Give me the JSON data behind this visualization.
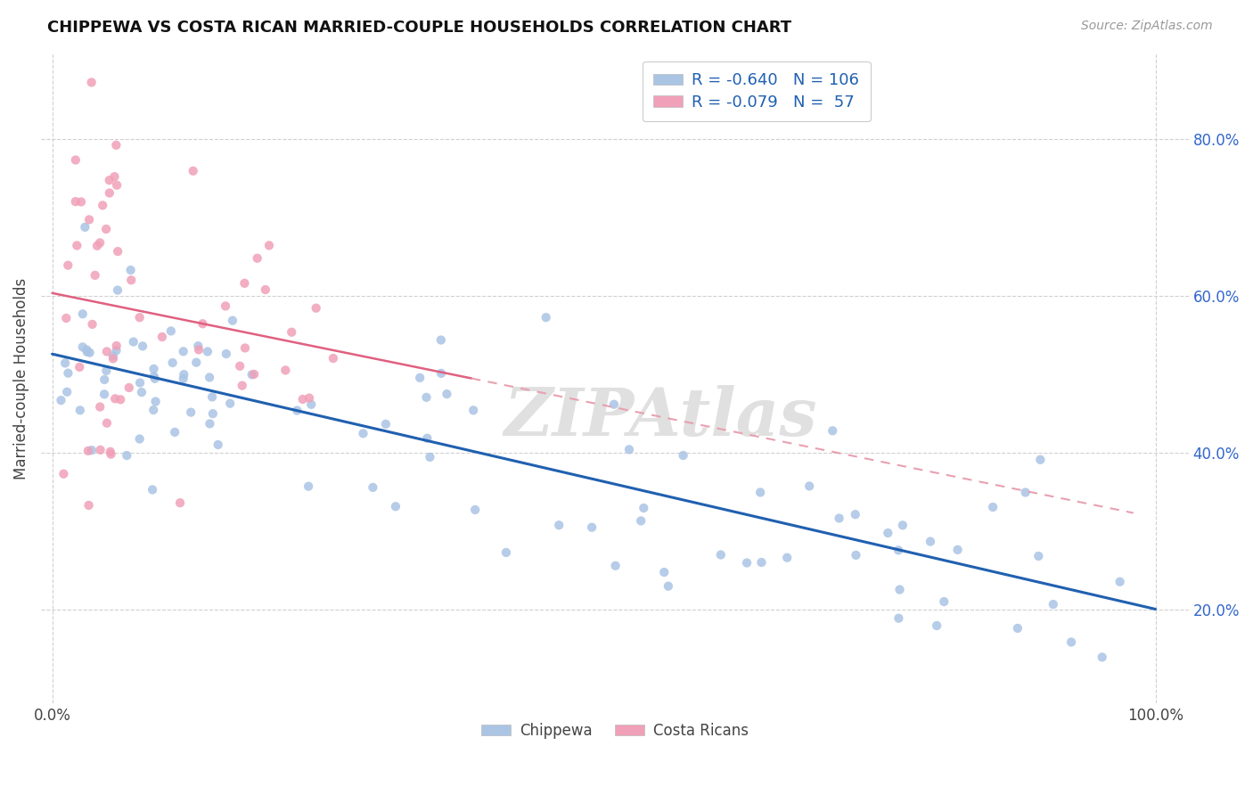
{
  "title": "CHIPPEWA VS COSTA RICAN MARRIED-COUPLE HOUSEHOLDS CORRELATION CHART",
  "source": "Source: ZipAtlas.com",
  "ylabel": "Married-couple Households",
  "ytick_labels": [
    "20.0%",
    "40.0%",
    "60.0%",
    "80.0%"
  ],
  "ytick_values": [
    0.2,
    0.4,
    0.6,
    0.8
  ],
  "xtick_labels": [
    "0.0%",
    "100.0%"
  ],
  "xtick_values": [
    0.0,
    1.0
  ],
  "xlim": [
    -0.01,
    1.03
  ],
  "ylim": [
    0.08,
    0.91
  ],
  "legend_line1": "R = -0.640   N = 106",
  "legend_line2": "R = -0.079   N =  57",
  "chippewa_color": "#aac4e4",
  "costa_rican_color": "#f0a0b8",
  "trendline1_color": "#2060b0",
  "trendline2_color": "#e06080",
  "trendline2_dashed_color": "#e8a0b0",
  "watermark": "ZIPAtlas",
  "grid_color": "#d0d0d0",
  "legend_text_color": "#2060b0",
  "legend_label_color": "#333333"
}
